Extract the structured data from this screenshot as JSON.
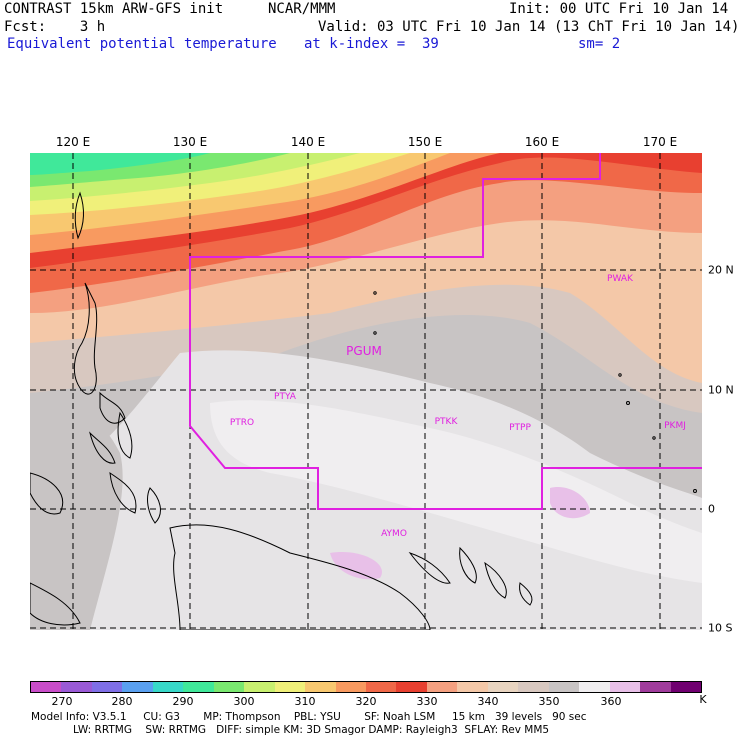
{
  "header": {
    "model": "CONTRAST 15km ARW-GFS init",
    "org": "NCAR/MMM",
    "init": "Init: 00 UTC Fri 10 Jan 14",
    "fcst": "Fcst:    3 h",
    "valid": "Valid: 03 UTC Fri 10 Jan 14 (13 ChT Fri 10 Jan 14)",
    "field": "Equivalent potential temperature",
    "level": "at k-index =  39",
    "sm": "sm= 2"
  },
  "axes": {
    "lon_labels": [
      "120 E",
      "130 E",
      "140 E",
      "150 E",
      "160 E",
      "170 E"
    ],
    "lat_labels": [
      "20 N",
      "10 N",
      "0",
      "10 S"
    ]
  },
  "stations": [
    "PWAK",
    "PGUM",
    "PTYA",
    "PTRO",
    "PTKK",
    "PTPP",
    "PKMJ",
    "AYMO"
  ],
  "colorbar": {
    "colors": [
      "#c94dc9",
      "#9a5ad6",
      "#7f6fe6",
      "#5aa0f0",
      "#38d8c8",
      "#40e89a",
      "#7ae870",
      "#c8f070",
      "#f0f07a",
      "#f8c870",
      "#f89a60",
      "#f06848",
      "#e84030",
      "#f4a080",
      "#f4c8a8",
      "#e8d4c0",
      "#d8c8c0",
      "#c8c4c4",
      "#f0eef0",
      "#e8c0e8",
      "#a03c9c",
      "#700070"
    ],
    "ticks": [
      "270",
      "280",
      "290",
      "300",
      "310",
      "320",
      "330",
      "340",
      "350",
      "360",
      "K"
    ],
    "unit": "K"
  },
  "model_info": {
    "line1": "Model Info: V3.5.1     CU: G3       MP: Thompson    PBL: YSU       SF: Noah LSM     15 km   39 levels   90 sec",
    "line2": "LW: RRTMG    SW: RRTMG   DIFF: simple KM: 3D Smagor DAMP: Rayleigh3  SFLAY: Rev MM5"
  }
}
